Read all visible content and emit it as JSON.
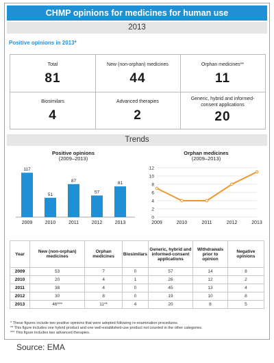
{
  "title": "CHMP opinions for medicines for human use",
  "year_band": "2013",
  "positive_heading": "Positive opinions in 2013*",
  "stats": [
    {
      "label": "Total",
      "value": "81"
    },
    {
      "label": "New (non-orphan) medicines",
      "value": "44"
    },
    {
      "label": "Orphan medicines**",
      "value": "11"
    },
    {
      "label": "Biosimilars",
      "value": "4"
    },
    {
      "label": "Advanced therapies",
      "value": "2"
    },
    {
      "label": "Generic, hybrid and informed-consent applications",
      "value": "20"
    }
  ],
  "trends_band": "Trends",
  "chart_data": [
    {
      "type": "bar",
      "title": "Positive opinions",
      "subtitle": "(2009–2013)",
      "categories": [
        "2009",
        "2010",
        "2011",
        "2012",
        "2013"
      ],
      "values": [
        117,
        51,
        87,
        57,
        81
      ],
      "ylim": [
        0,
        130
      ],
      "color": "#1f8fd6"
    },
    {
      "type": "line",
      "title": "Orphan medicines",
      "subtitle": "(2009–2013)",
      "x": [
        "2009",
        "2010",
        "2011",
        "2012",
        "2013"
      ],
      "values": [
        7,
        4,
        4,
        8,
        11
      ],
      "ylim": [
        0,
        12
      ],
      "yticks": [
        0,
        2,
        4,
        6,
        8,
        10,
        12
      ],
      "grid": true,
      "color": "#f0962a"
    }
  ],
  "table": {
    "headers": [
      "Year",
      "New (non-orphan) medicines",
      "Orphan medicines",
      "Biosimilars",
      "Generic, hybrid and informed-consent applications",
      "Withdrawals prior to opinion",
      "Negative opinions"
    ],
    "rows": [
      [
        "2009",
        "53",
        "7",
        "0",
        "57",
        "14",
        "8"
      ],
      [
        "2010",
        "20",
        "4",
        "1",
        "26",
        "12",
        "2"
      ],
      [
        "2011",
        "38",
        "4",
        "0",
        "45",
        "13",
        "4"
      ],
      [
        "2012",
        "30",
        "8",
        "0",
        "19",
        "10",
        "8"
      ],
      [
        "2013",
        "46***",
        "11**",
        "4",
        "20",
        "8",
        "5"
      ]
    ]
  },
  "notes": [
    "* These figures include two positive opinions that were adopted following re-examination procedures.",
    "** This figure includes one hybrid product and one well-established-use product not counted in the other categories.",
    "*** This figure includes two advanced therapies."
  ],
  "source": "Source: EMA"
}
